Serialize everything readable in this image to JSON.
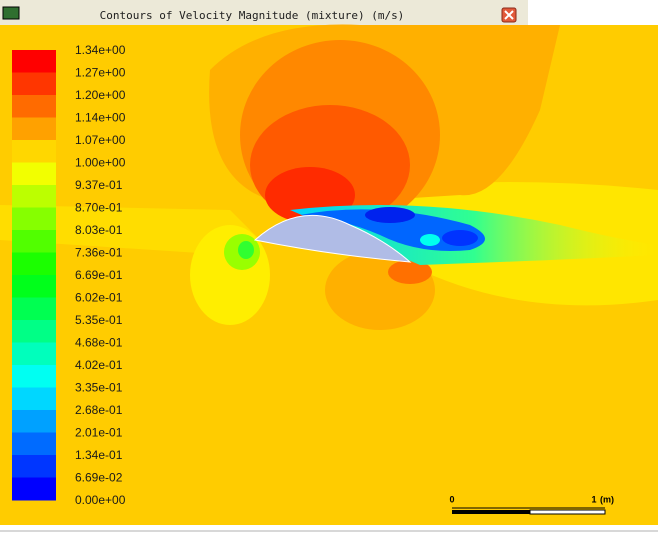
{
  "window": {
    "title": "Contours of Velocity Magnitude (mixture)  (m/s)"
  },
  "colorbar": {
    "labels": [
      "1.34e+00",
      "1.27e+00",
      "1.20e+00",
      "1.14e+00",
      "1.07e+00",
      "1.00e+00",
      "9.37e-01",
      "8.70e-01",
      "8.03e-01",
      "7.36e-01",
      "6.69e-01",
      "6.02e-01",
      "5.35e-01",
      "4.68e-01",
      "4.02e-01",
      "3.35e-01",
      "2.68e-01",
      "2.01e-01",
      "1.34e-01",
      "6.69e-02",
      "0.00e+00"
    ]
  },
  "scale_bar": {
    "labels": [
      "0",
      "1",
      "(m)"
    ]
  }
}
